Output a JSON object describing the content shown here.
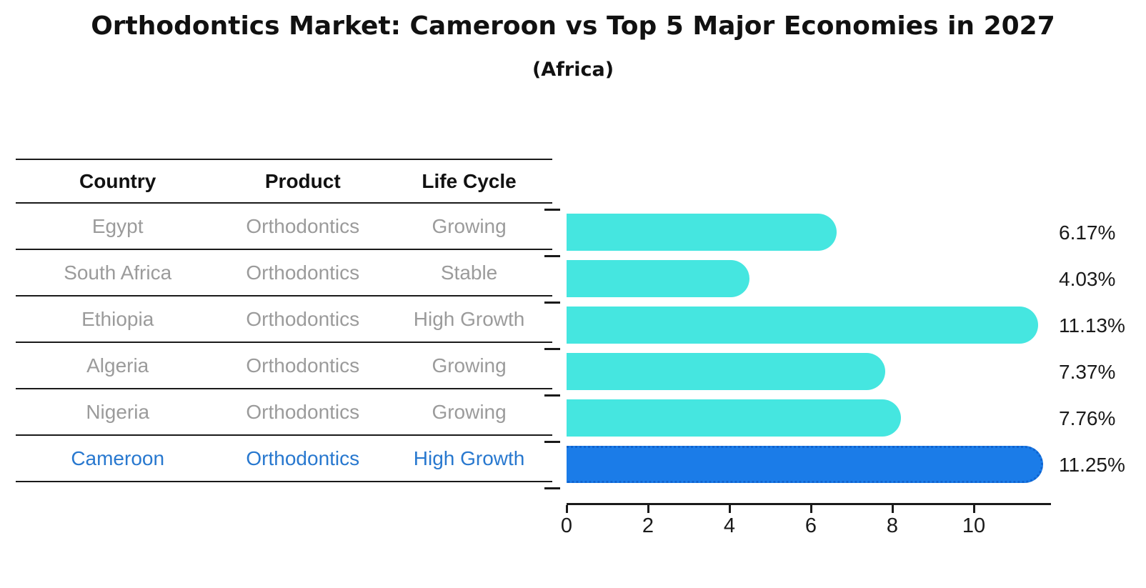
{
  "title": "Orthodontics Market: Cameroon vs Top 5 Major Economies in 2027",
  "subtitle": "(Africa)",
  "table": {
    "headers": [
      "Country",
      "Product",
      "Life Cycle"
    ],
    "rows": [
      {
        "country": "Egypt",
        "product": "Orthodontics",
        "life_cycle": "Growing",
        "highlight": false
      },
      {
        "country": "South Africa",
        "product": "Orthodontics",
        "life_cycle": "Stable",
        "highlight": false
      },
      {
        "country": "Ethiopia",
        "product": "Orthodontics",
        "life_cycle": "High Growth",
        "highlight": false
      },
      {
        "country": "Algeria",
        "product": "Orthodontics",
        "life_cycle": "Growing",
        "highlight": false
      },
      {
        "country": "Nigeria",
        "product": "Orthodontics",
        "life_cycle": "Growing",
        "highlight": true
      }
    ],
    "highlight_row": {
      "country": "Cameroon",
      "product": "Orthodontics",
      "life_cycle": "High Growth",
      "highlight": true
    }
  },
  "chart_data": {
    "type": "bar",
    "orientation": "horizontal",
    "title": "Orthodontics Market: Cameroon vs Top 5 Major Economies in 2027",
    "subtitle": "(Africa)",
    "categories": [
      "Egypt",
      "South Africa",
      "Ethiopia",
      "Algeria",
      "Nigeria",
      "Cameroon"
    ],
    "values": [
      6.17,
      4.03,
      11.13,
      7.37,
      7.76,
      11.25
    ],
    "labels": [
      "6.17%",
      "4.03%",
      "11.13%",
      "7.37%",
      "7.76%",
      "11.25%"
    ],
    "value_unit": "%",
    "x_ticks": [
      0,
      2,
      4,
      6,
      8,
      10
    ],
    "xlim": [
      0,
      11.85
    ],
    "grid": false,
    "legend": "none",
    "bar_color": "#45e6e0",
    "highlight_bar_color": "#1b7ce8",
    "highlight_index": 5,
    "highlight_text_color": "#2878cf",
    "row_text_color": "#9b9b9b"
  }
}
